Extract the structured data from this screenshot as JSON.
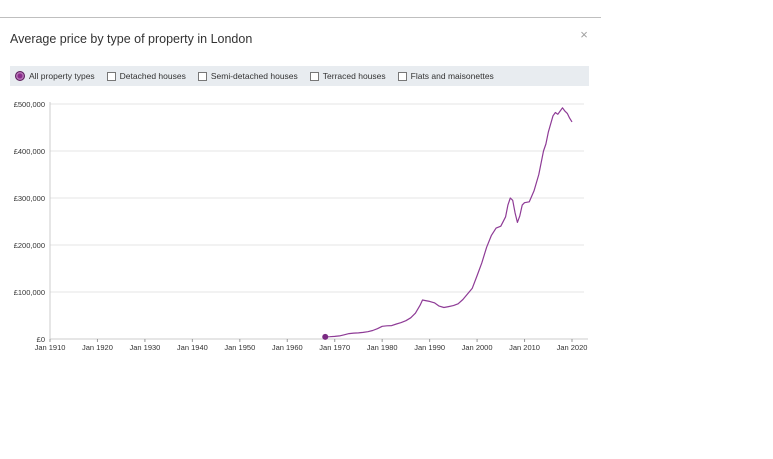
{
  "header": {
    "title": "Average price by type of property in London"
  },
  "filters": [
    {
      "label": "All property types",
      "selected": true
    },
    {
      "label": "Detached houses",
      "selected": false
    },
    {
      "label": "Semi-detached houses",
      "selected": false
    },
    {
      "label": "Terraced houses",
      "selected": false
    },
    {
      "label": "Flats and maisonettes",
      "selected": false
    }
  ],
  "colors": {
    "series": "#8e3b96",
    "grid": "#e6e6e6",
    "axis": "#cccccc"
  },
  "chart_data": {
    "type": "line",
    "title": "Average price by type of property in London",
    "xlabel": "",
    "ylabel": "",
    "xlim": [
      1910,
      2020
    ],
    "ylim": [
      0,
      500000
    ],
    "x_ticks": [
      "Jan 1910",
      "Jan 1920",
      "Jan 1930",
      "Jan 1940",
      "Jan 1950",
      "Jan 1960",
      "Jan 1970",
      "Jan 1980",
      "Jan 1990",
      "Jan 2000",
      "Jan 2010",
      "Jan 2020"
    ],
    "x_tick_values": [
      1910,
      1920,
      1930,
      1940,
      1950,
      1960,
      1970,
      1980,
      1990,
      2000,
      2010,
      2020
    ],
    "y_ticks": [
      "£0",
      "£100,000",
      "£200,000",
      "£300,000",
      "£400,000",
      "£500,000"
    ],
    "y_tick_values": [
      0,
      100000,
      200000,
      300000,
      400000,
      500000
    ],
    "grid": true,
    "series": [
      {
        "name": "All property types",
        "x": [
          1968,
          1969,
          1970,
          1971,
          1972,
          1973,
          1974,
          1975,
          1976,
          1977,
          1978,
          1979,
          1980,
          1981,
          1982,
          1983,
          1984,
          1985,
          1986,
          1987,
          1988,
          1988.5,
          1989,
          1990,
          1991,
          1992,
          1993,
          1994,
          1995,
          1996,
          1997,
          1998,
          1999,
          2000,
          2001,
          2002,
          2003,
          2004,
          2005,
          2006,
          2006.5,
          2007,
          2007.5,
          2008,
          2008.5,
          2009,
          2009.5,
          2010,
          2011,
          2012,
          2013,
          2014,
          2014.5,
          2015,
          2016,
          2016.5,
          2017,
          2017.5,
          2018,
          2018.5,
          2019,
          2019.5,
          2020
        ],
        "values": [
          4500,
          5000,
          5500,
          6500,
          9000,
          11500,
          12500,
          13000,
          14000,
          15500,
          18000,
          22000,
          27000,
          28000,
          28500,
          32000,
          35000,
          39000,
          45000,
          55000,
          72000,
          83000,
          82000,
          80000,
          77000,
          70000,
          67000,
          69000,
          71000,
          75000,
          84000,
          96000,
          108000,
          135000,
          162000,
          195000,
          220000,
          236000,
          240000,
          260000,
          285000,
          300000,
          295000,
          268000,
          248000,
          262000,
          285000,
          290000,
          292000,
          315000,
          350000,
          400000,
          415000,
          440000,
          475000,
          482000,
          478000,
          485000,
          492000,
          485000,
          480000,
          470000,
          462000
        ]
      }
    ]
  }
}
